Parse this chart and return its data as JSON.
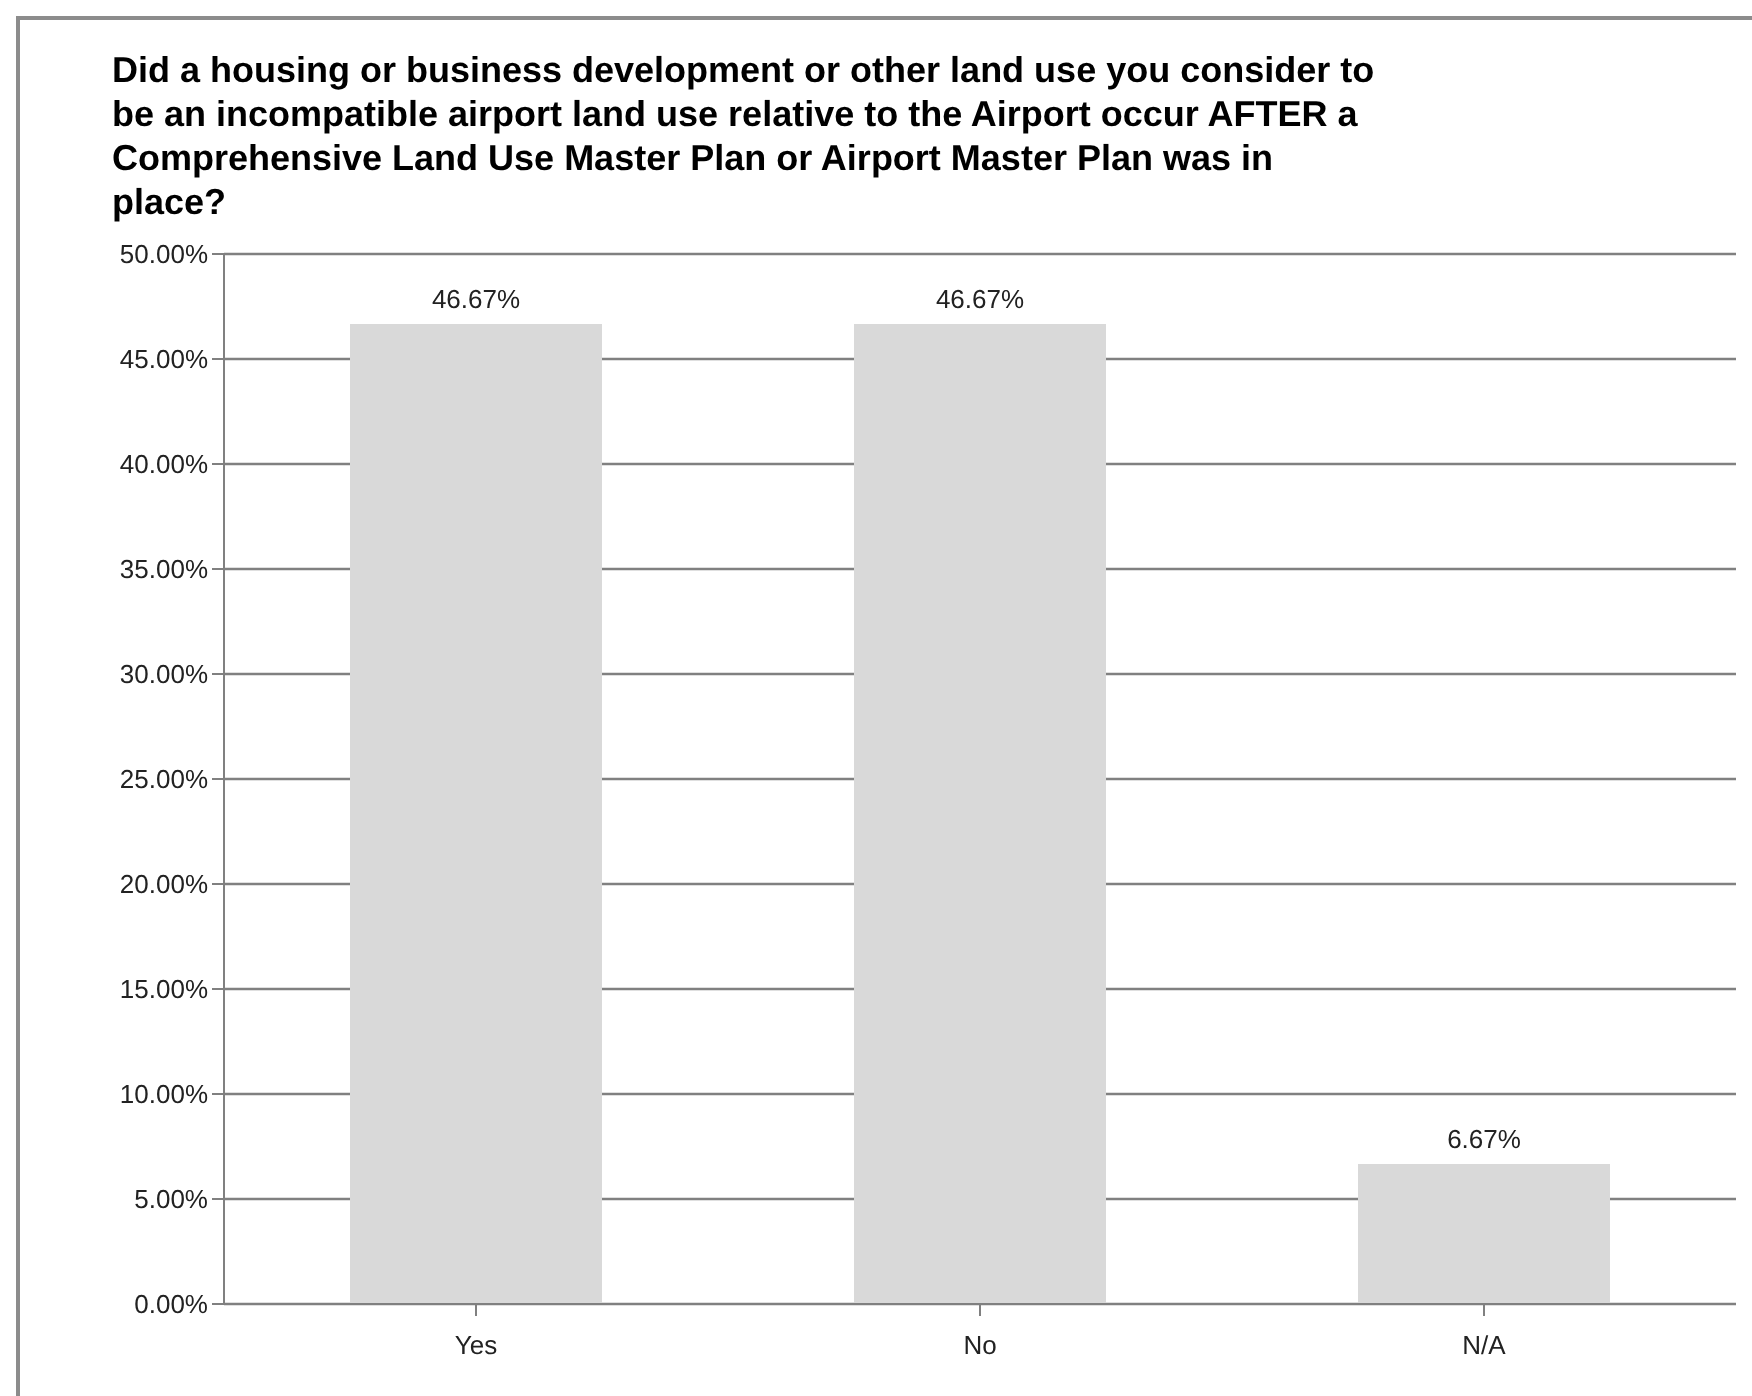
{
  "chart_data": {
    "type": "bar",
    "title": "Did a housing or business development or other land use you consider to be an incompatible airport land use relative to the Airport occur AFTER a Comprehensive Land Use Master Plan or Airport Master Plan was in place?",
    "categories": [
      "Yes",
      "No",
      "N/A"
    ],
    "values": [
      46.67,
      46.67,
      6.67
    ],
    "value_labels": [
      "46.67%",
      "46.67%",
      "6.67%"
    ],
    "color": "#d9d9d9",
    "ylim": [
      0,
      50
    ],
    "yticks": [
      {
        "value": 0,
        "label": "0.00%"
      },
      {
        "value": 5,
        "label": "5.00%"
      },
      {
        "value": 10,
        "label": "10.00%"
      },
      {
        "value": 15,
        "label": "15.00%"
      },
      {
        "value": 20,
        "label": "20.00%"
      },
      {
        "value": 25,
        "label": "25.00%"
      },
      {
        "value": 30,
        "label": "30.00%"
      },
      {
        "value": 35,
        "label": "35.00%"
      },
      {
        "value": 40,
        "label": "40.00%"
      },
      {
        "value": 45,
        "label": "45.00%"
      },
      {
        "value": 50,
        "label": "50.00%"
      }
    ],
    "grid": "y"
  }
}
